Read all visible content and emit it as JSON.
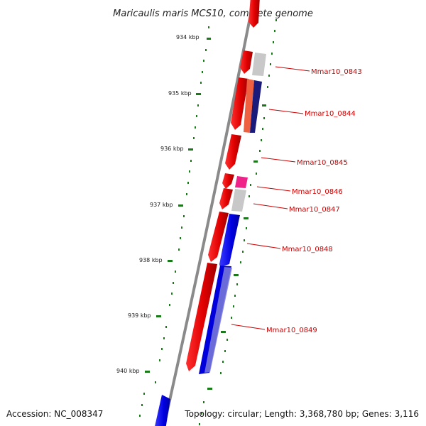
{
  "title": "Maricaulis maris MCS10, complete genome",
  "footer": {
    "accession": "Accession: NC_008347",
    "summary": "Topology: circular; Length: 3,368,780 bp; Genes: 3,116"
  },
  "colors": {
    "backbone": "#8a8a8a",
    "tick": "#1a7a1a",
    "forward_cds": "#ee1111",
    "reverse_cds": "#1111dd",
    "label": "#cc0000"
  },
  "position_ticks": [
    "934 kbp",
    "935 kbp",
    "936 kbp",
    "937 kbp",
    "938 kbp",
    "939 kbp",
    "940 kbp"
  ],
  "gene_labels": [
    "Mmar10_0843",
    "Mmar10_0844",
    "Mmar10_0845",
    "Mmar10_0846",
    "Mmar10_0847",
    "Mmar10_0848",
    "Mmar10_0849"
  ]
}
